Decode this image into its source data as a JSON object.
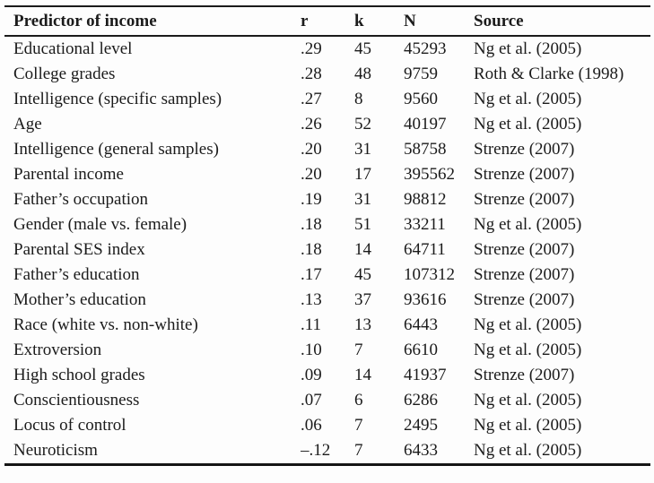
{
  "colors": {
    "background": "#fdfdfd",
    "text": "#1b1b1b",
    "rule": "#1b1b1b"
  },
  "table": {
    "column_keys": [
      "predictor",
      "r",
      "k",
      "n",
      "source"
    ],
    "headers": [
      "Predictor of income",
      "r",
      "k",
      "N",
      "Source"
    ],
    "rows": [
      [
        "Educational level",
        ".29",
        "45",
        "45293",
        "Ng et al. (2005)"
      ],
      [
        "College grades",
        ".28",
        "48",
        "9759",
        "Roth & Clarke (1998)"
      ],
      [
        "Intelligence (specific samples)",
        ".27",
        "8",
        "9560",
        "Ng et al. (2005)"
      ],
      [
        "Age",
        ".26",
        "52",
        "40197",
        "Ng et al. (2005)"
      ],
      [
        "Intelligence (general samples)",
        ".20",
        "31",
        "58758",
        "Strenze (2007)"
      ],
      [
        "Parental income",
        ".20",
        "17",
        "395562",
        "Strenze (2007)"
      ],
      [
        "Father’s occupation",
        ".19",
        "31",
        "98812",
        "Strenze (2007)"
      ],
      [
        "Gender (male vs. female)",
        ".18",
        "51",
        "33211",
        "Ng et al. (2005)"
      ],
      [
        "Parental SES index",
        ".18",
        "14",
        "64711",
        "Strenze (2007)"
      ],
      [
        "Father’s education",
        ".17",
        "45",
        "107312",
        "Strenze (2007)"
      ],
      [
        "Mother’s education",
        ".13",
        "37",
        "93616",
        "Strenze (2007)"
      ],
      [
        "Race (white vs. non-white)",
        ".11",
        "13",
        "6443",
        "Ng et al. (2005)"
      ],
      [
        "Extroversion",
        ".10",
        "7",
        "6610",
        "Ng et al. (2005)"
      ],
      [
        "High school grades",
        ".09",
        "14",
        "41937",
        "Strenze (2007)"
      ],
      [
        "Conscientiousness",
        ".07",
        "6",
        "6286",
        "Ng et al. (2005)"
      ],
      [
        "Locus of control",
        ".06",
        "7",
        "2495",
        "Ng et al. (2005)"
      ],
      [
        "Neuroticism",
        "–.12",
        "7",
        "6433",
        "Ng et al. (2005)"
      ]
    ]
  }
}
